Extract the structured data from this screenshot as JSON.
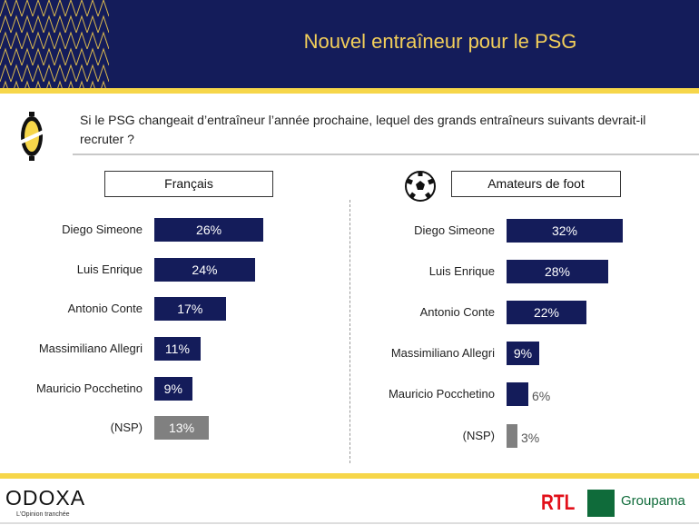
{
  "header": {
    "title": "Nouvel entraîneur pour le PSG"
  },
  "question": "Si le PSG changeait d’entraîneur l’année prochaine, lequel des grands entraîneurs suivants devrait-il recruter ?",
  "colors": {
    "navy": "#141c5a",
    "yellow": "#f6d64a",
    "nsp": "#808080"
  },
  "chart_data": [
    {
      "type": "bar",
      "orientation": "horizontal",
      "title": "Français",
      "unit": "%",
      "categories": [
        "Diego Simeone",
        "Luis Enrique",
        "Antonio Conte",
        "Massimiliano Allegri",
        "Mauricio Pocchetino",
        "(NSP)"
      ],
      "values": [
        26,
        24,
        17,
        11,
        9,
        13
      ],
      "labels": [
        "26%",
        "24%",
        "17%",
        "11%",
        "9%",
        "13%"
      ]
    },
    {
      "type": "bar",
      "orientation": "horizontal",
      "title": "Amateurs de foot",
      "unit": "%",
      "categories": [
        "Diego Simeone",
        "Luis Enrique",
        "Antonio Conte",
        "Massimiliano Allegri",
        "Mauricio Pocchetino",
        "(NSP)"
      ],
      "values": [
        32,
        28,
        22,
        9,
        6,
        3
      ],
      "labels": [
        "32%",
        "28%",
        "22%",
        "9%",
        "6%",
        "3%"
      ]
    }
  ],
  "footer": {
    "brand": "ODOXA",
    "tagline": "L'Opinion tranchée",
    "partner1": "RTL",
    "partner2": "Groupama"
  }
}
